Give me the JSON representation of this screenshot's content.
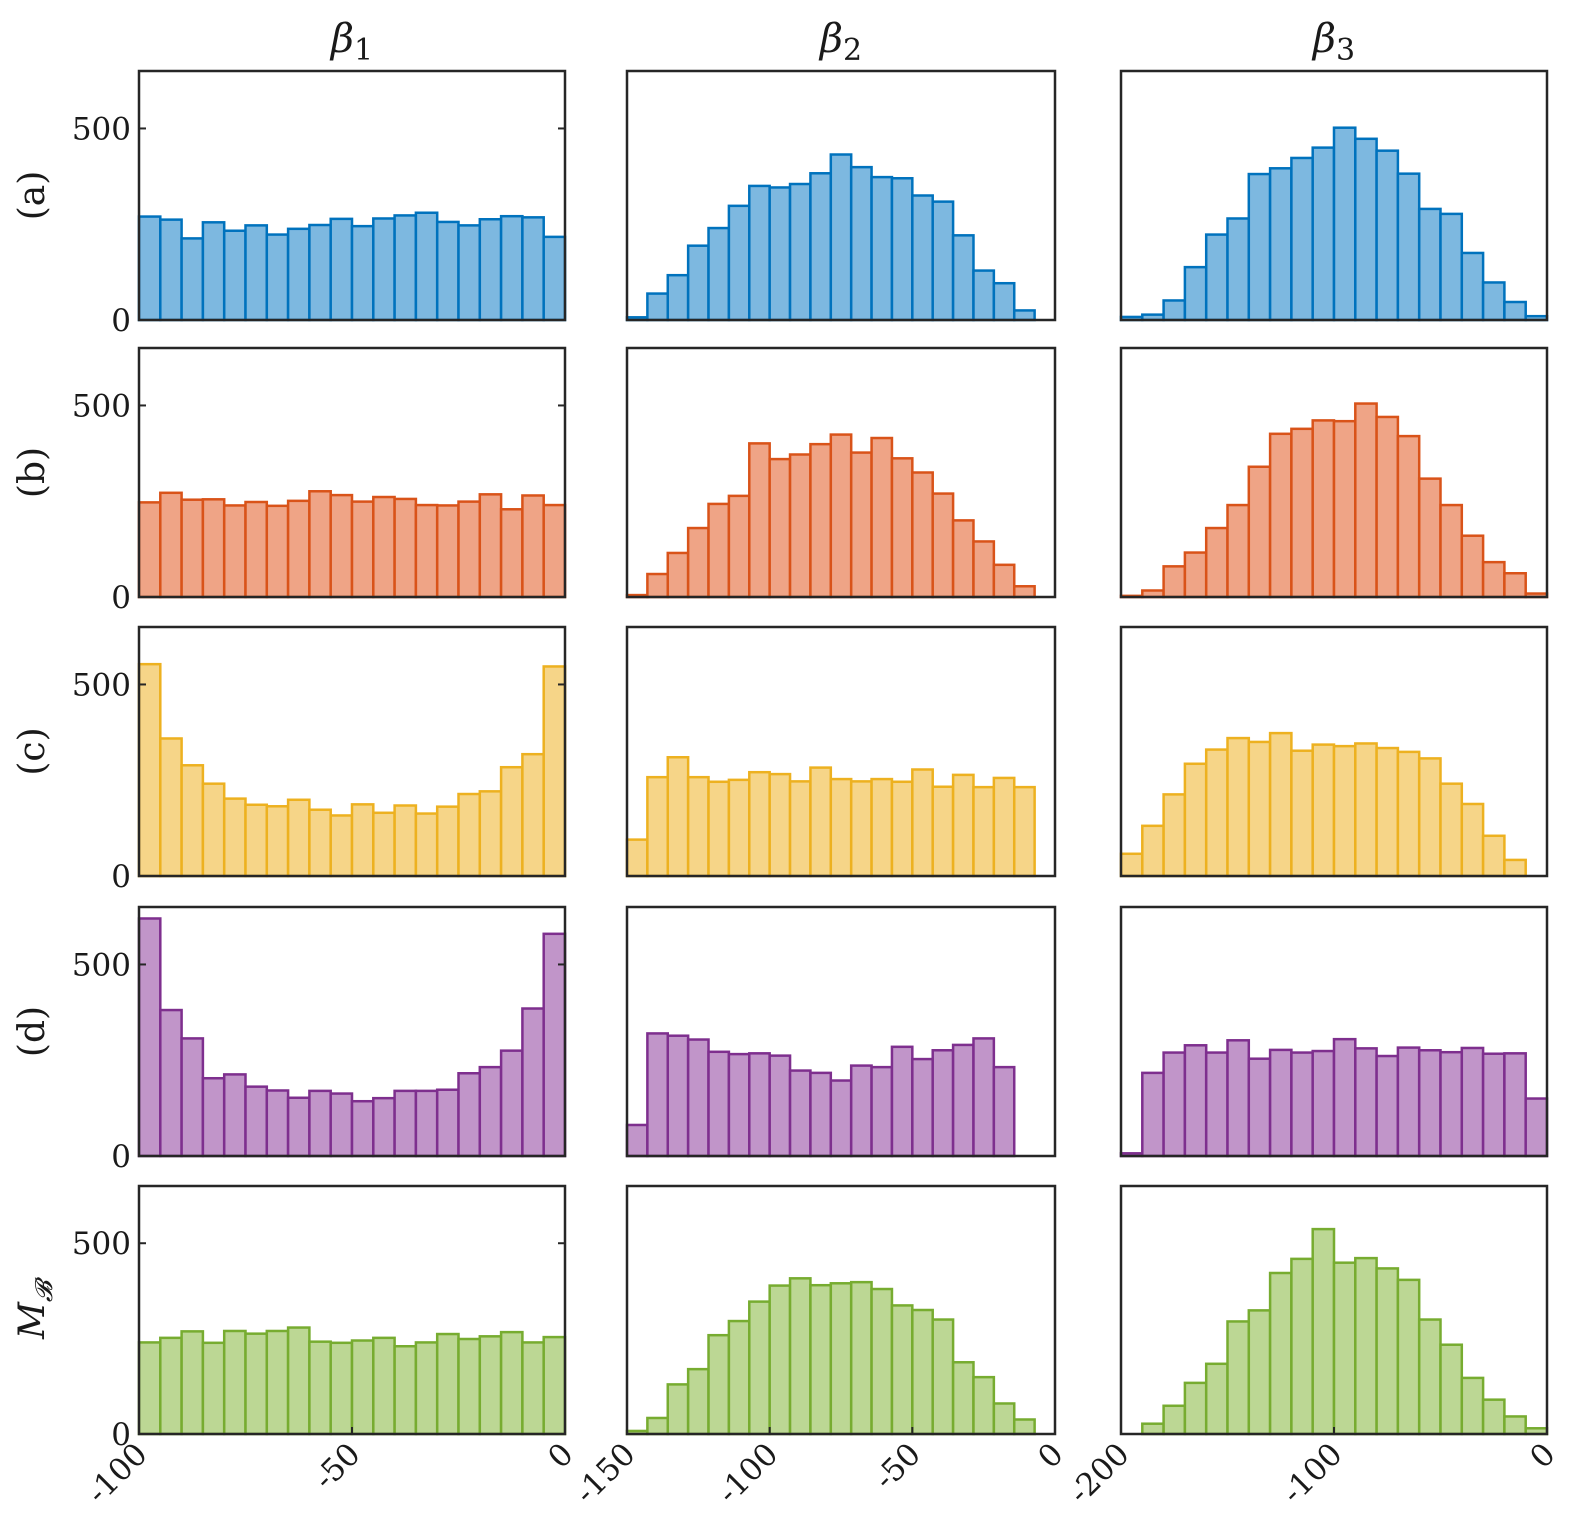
{
  "colors": {
    "a": {
      "fill": "#7db8e0",
      "edge": "#0072bd"
    },
    "b": {
      "fill": "#efa486",
      "edge": "#d95319"
    },
    "c": {
      "fill": "#f6d588",
      "edge": "#edb120"
    },
    "d": {
      "fill": "#c195c9",
      "edge": "#7e2f8e"
    },
    "MB": {
      "fill": "#bcd794",
      "edge": "#77ac30"
    }
  },
  "chart_data": {
    "type": "bar",
    "subtype": "histogram-grid",
    "grid": false,
    "columns": [
      {
        "title": "β",
        "subscript": "1",
        "xlim": [
          -100,
          0
        ],
        "xticks": [
          "-100",
          "-50",
          "0"
        ],
        "bins": 20
      },
      {
        "title": "β",
        "subscript": "2",
        "xlim": [
          -150,
          0
        ],
        "xticks": [
          "-150",
          "-100",
          "-50",
          "0"
        ],
        "bins": 21
      },
      {
        "title": "β",
        "subscript": "3",
        "xlim": [
          -200,
          0
        ],
        "xticks": [
          "-200",
          "-100",
          "0"
        ],
        "bins": 20
      }
    ],
    "rows": [
      {
        "key": "a",
        "label": "(a)",
        "subscript": "",
        "ylim": [
          0,
          650
        ],
        "yticks": [
          "0",
          "500"
        ]
      },
      {
        "key": "b",
        "label": "(b)",
        "subscript": "",
        "ylim": [
          0,
          650
        ],
        "yticks": [
          "0",
          "500"
        ]
      },
      {
        "key": "c",
        "label": "(c)",
        "subscript": "",
        "ylim": [
          0,
          650
        ],
        "yticks": [
          "0",
          "500"
        ]
      },
      {
        "key": "d",
        "label": "(d)",
        "subscript": "",
        "ylim": [
          0,
          650
        ],
        "yticks": [
          "0",
          "500"
        ]
      },
      {
        "key": "MB",
        "label": "M",
        "subscript": "𝓑",
        "ylim": [
          0,
          650
        ],
        "yticks": [
          "0",
          "500"
        ]
      }
    ],
    "series": [
      {
        "row": "a",
        "col": 0,
        "values": [
          270,
          262,
          213,
          255,
          233,
          247,
          223,
          238,
          248,
          264,
          245,
          265,
          273,
          280,
          256,
          247,
          263,
          271,
          268,
          217
        ]
      },
      {
        "row": "a",
        "col": 1,
        "values": [
          7,
          69,
          117,
          194,
          240,
          298,
          350,
          346,
          355,
          383,
          432,
          399,
          373,
          370,
          325,
          309,
          221,
          129,
          96,
          25,
          0
        ]
      },
      {
        "row": "a",
        "col": 2,
        "values": [
          8,
          14,
          51,
          138,
          223,
          265,
          381,
          396,
          423,
          450,
          502,
          473,
          442,
          382,
          290,
          277,
          175,
          98,
          47,
          10
        ]
      },
      {
        "row": "b",
        "col": 0,
        "values": [
          247,
          272,
          254,
          255,
          239,
          248,
          238,
          251,
          276,
          266,
          249,
          261,
          256,
          240,
          239,
          249,
          268,
          229,
          265,
          240
        ]
      },
      {
        "row": "b",
        "col": 1,
        "values": [
          5,
          60,
          115,
          180,
          243,
          264,
          401,
          360,
          372,
          399,
          424,
          377,
          415,
          362,
          325,
          270,
          200,
          145,
          84,
          28,
          0
        ]
      },
      {
        "row": "b",
        "col": 2,
        "values": [
          3,
          17,
          80,
          116,
          180,
          240,
          340,
          426,
          439,
          461,
          459,
          505,
          470,
          420,
          309,
          240,
          160,
          91,
          62,
          9
        ]
      },
      {
        "row": "c",
        "col": 0,
        "values": [
          553,
          359,
          289,
          241,
          202,
          186,
          182,
          199,
          173,
          158,
          187,
          165,
          184,
          163,
          181,
          214,
          221,
          284,
          318,
          547
        ]
      },
      {
        "row": "c",
        "col": 1,
        "values": [
          95,
          258,
          310,
          258,
          246,
          251,
          271,
          266,
          247,
          283,
          253,
          247,
          253,
          246,
          278,
          233,
          264,
          232,
          256,
          232,
          0
        ]
      },
      {
        "row": "c",
        "col": 2,
        "values": [
          58,
          131,
          213,
          293,
          330,
          360,
          350,
          373,
          327,
          343,
          339,
          346,
          334,
          324,
          307,
          241,
          188,
          105,
          42,
          0
        ]
      },
      {
        "row": "d",
        "col": 0,
        "values": [
          620,
          381,
          307,
          203,
          213,
          181,
          171,
          152,
          170,
          163,
          143,
          151,
          170,
          170,
          173,
          216,
          232,
          275,
          385,
          580
        ]
      },
      {
        "row": "d",
        "col": 1,
        "values": [
          81,
          320,
          314,
          304,
          272,
          266,
          268,
          262,
          223,
          217,
          197,
          236,
          232,
          285,
          253,
          276,
          290,
          307,
          232,
          0,
          0
        ]
      },
      {
        "row": "d",
        "col": 2,
        "values": [
          7,
          217,
          270,
          289,
          270,
          302,
          254,
          277,
          270,
          274,
          305,
          281,
          261,
          283,
          276,
          271,
          282,
          267,
          268,
          150
        ]
      },
      {
        "row": "MB",
        "col": 0,
        "values": [
          240,
          252,
          269,
          239,
          270,
          263,
          270,
          279,
          242,
          239,
          245,
          252,
          230,
          240,
          262,
          249,
          256,
          267,
          240,
          254
        ]
      },
      {
        "row": "MB",
        "col": 1,
        "values": [
          8,
          42,
          130,
          170,
          259,
          296,
          347,
          389,
          408,
          390,
          395,
          398,
          380,
          337,
          325,
          300,
          188,
          149,
          80,
          38,
          0
        ]
      },
      {
        "row": "MB",
        "col": 2,
        "values": [
          0,
          27,
          74,
          134,
          184,
          295,
          324,
          422,
          459,
          537,
          449,
          461,
          434,
          404,
          300,
          234,
          147,
          90,
          46,
          15
        ]
      }
    ]
  }
}
